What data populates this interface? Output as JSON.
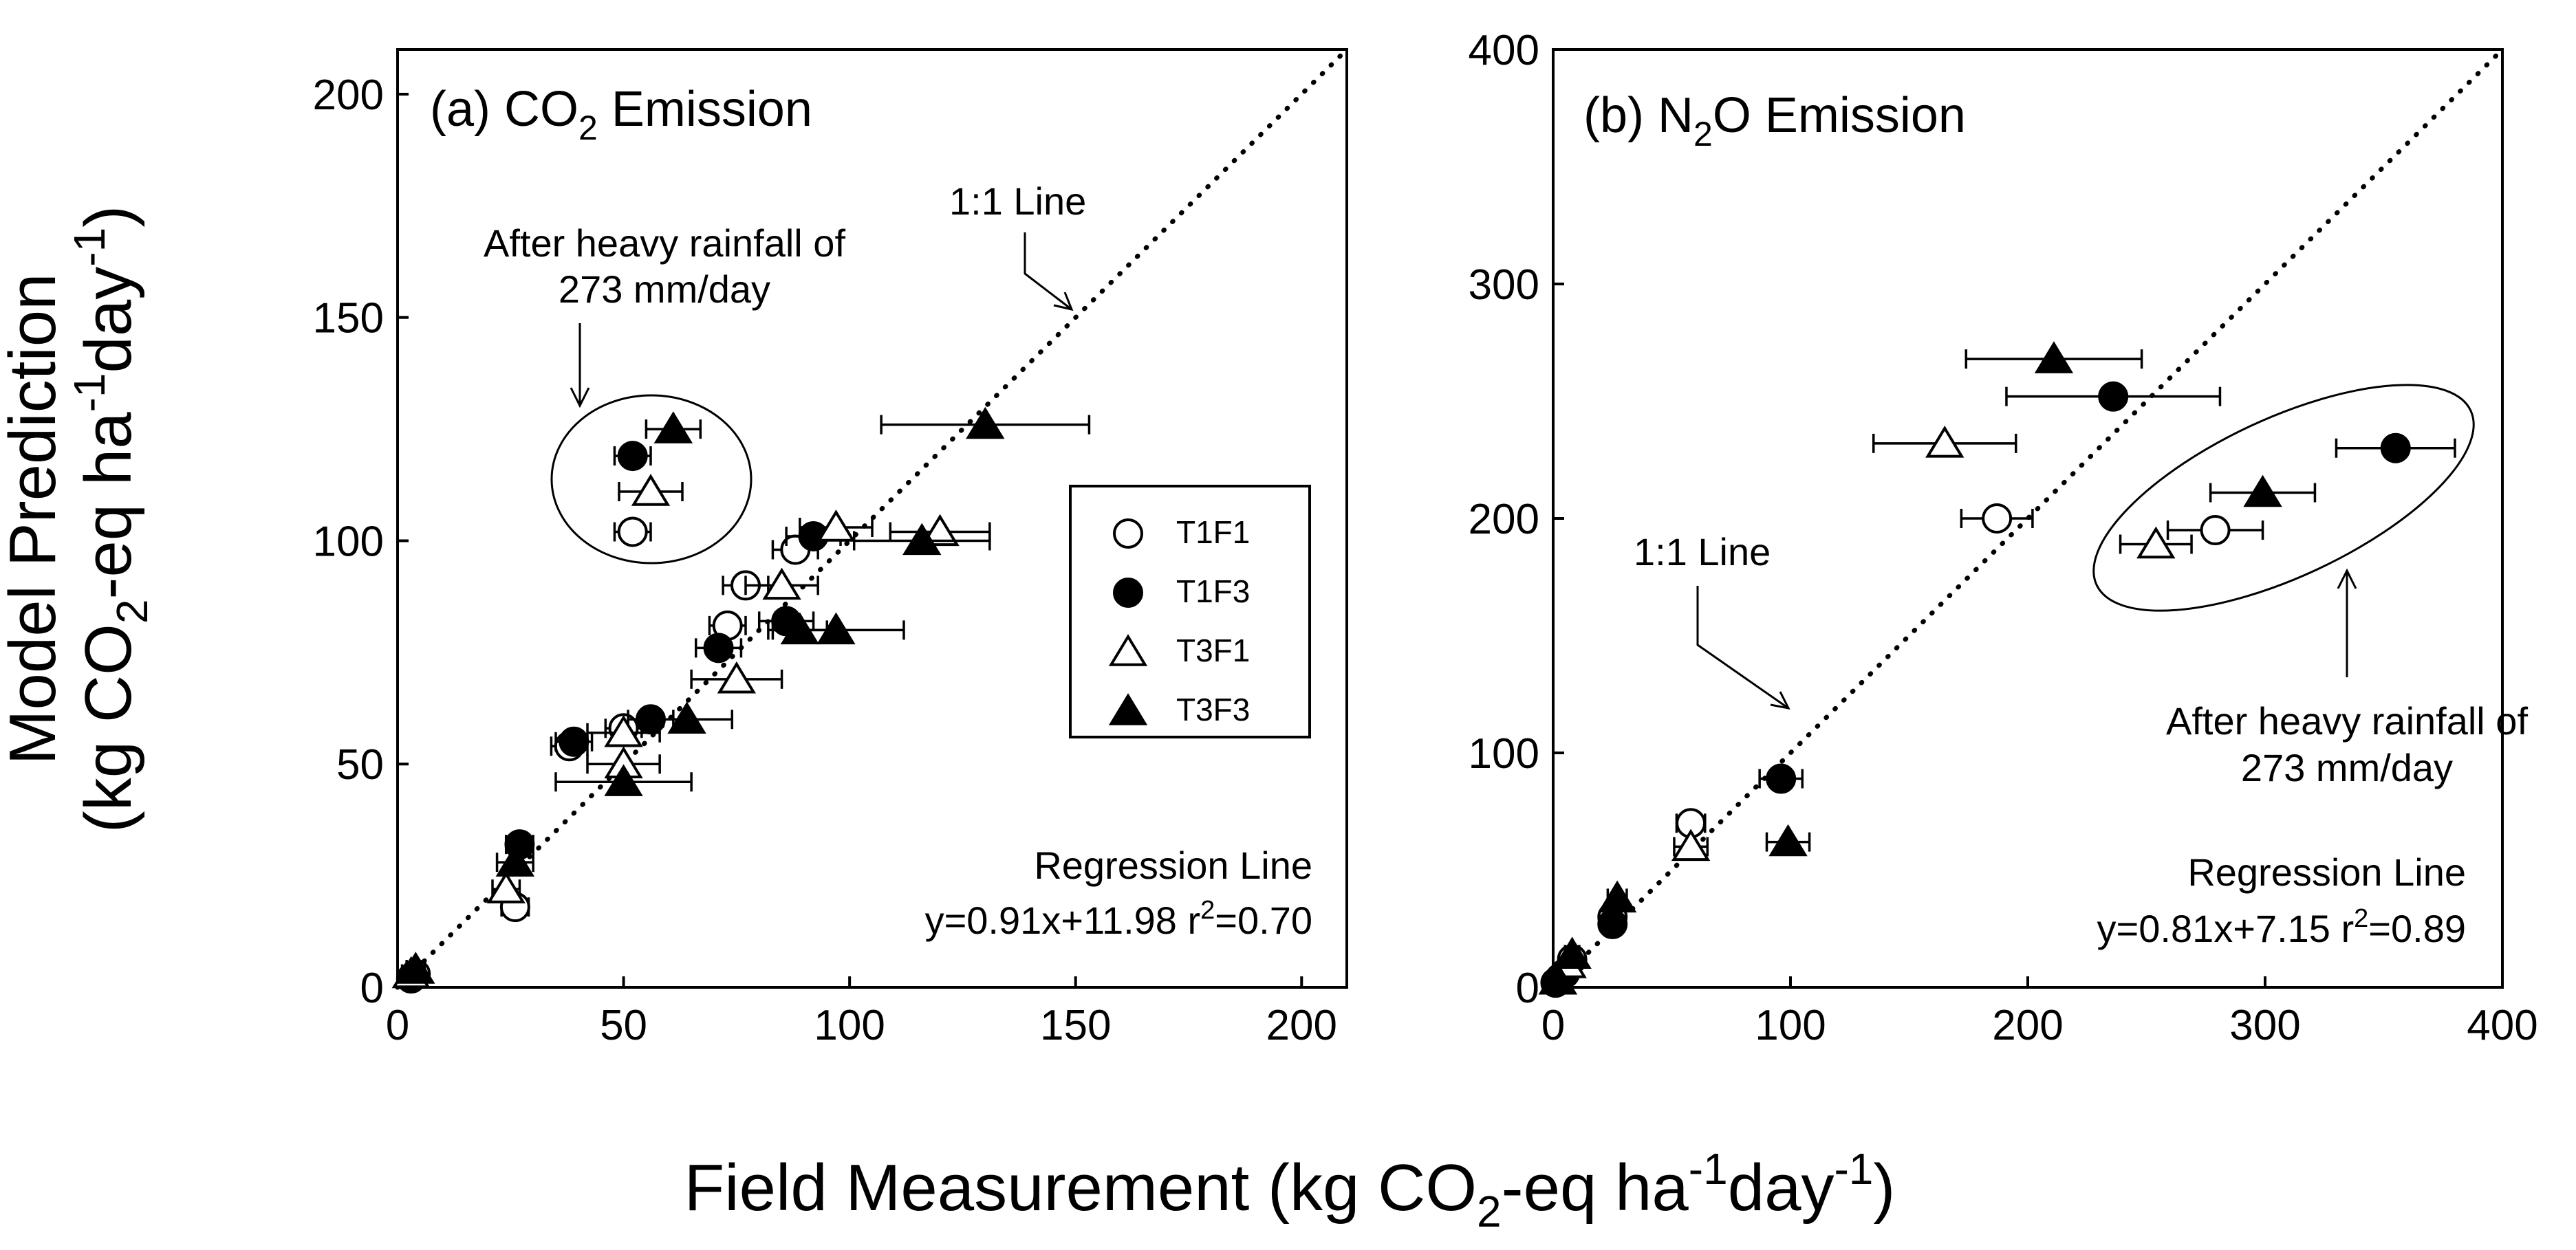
{
  "chart_data": [
    {
      "type": "scatter",
      "panel": "a",
      "title_parts": [
        "(a) CO",
        "2",
        " Emission"
      ],
      "xlim": [
        0,
        210
      ],
      "ylim": [
        0,
        210
      ],
      "xticks": [
        0,
        50,
        100,
        150,
        200
      ],
      "yticks": [
        0,
        50,
        100,
        150,
        200
      ],
      "tick_labels_x": [
        "0",
        "50",
        "100",
        "150",
        "200"
      ],
      "tick_labels_y": [
        "0",
        "50",
        "100",
        "150",
        "200"
      ],
      "one_to_one": {
        "label": "1:1 Line",
        "arrow_to": [
          150,
          150
        ]
      },
      "annotation": {
        "lines": [
          "After heavy rainfall of",
          "273 mm/day"
        ],
        "ellipse_center": [
          56,
          114
        ]
      },
      "legend": {
        "position": "right",
        "entries": [
          {
            "key": "T1F1",
            "label": "T1F1"
          },
          {
            "key": "T1F3",
            "label": "T1F3"
          },
          {
            "key": "T3F1",
            "label": "T3F1"
          },
          {
            "key": "T3F3",
            "label": "T3F3"
          }
        ]
      },
      "regression": {
        "label": "Regression Line",
        "eq_prefix": "y=0.91x+11.98 r",
        "eq_exp": "2",
        "eq_suffix": "=0.70"
      },
      "series": [
        {
          "name": "T1F1",
          "marker": "circle-open",
          "points": [
            [
              52,
              102,
              4
            ],
            [
              77,
              90,
              5
            ],
            [
              73,
              81,
              4
            ],
            [
              88,
              98,
              5
            ],
            [
              38,
              54,
              4
            ],
            [
              50,
              58,
              4
            ],
            [
              26,
              18,
              3
            ],
            [
              4,
              3,
              2
            ]
          ]
        },
        {
          "name": "T1F3",
          "marker": "circle-filled",
          "points": [
            [
              52,
              119,
              4
            ],
            [
              92,
              101,
              6
            ],
            [
              86,
              82,
              6
            ],
            [
              71,
              76,
              5
            ],
            [
              56,
              60,
              5
            ],
            [
              39,
              55,
              4
            ],
            [
              27,
              32,
              3
            ],
            [
              3,
              2,
              2
            ]
          ]
        },
        {
          "name": "T3F1",
          "marker": "triangle-open",
          "points": [
            [
              56,
              111,
              7
            ],
            [
              97,
              103,
              8
            ],
            [
              120,
              102,
              11
            ],
            [
              85,
              90,
              8
            ],
            [
              75,
              69,
              10
            ],
            [
              50,
              57,
              8
            ],
            [
              50,
              50,
              8
            ],
            [
              24,
              22,
              3
            ],
            [
              3,
              3,
              2
            ]
          ]
        },
        {
          "name": "T3F3",
          "marker": "triangle-filled",
          "points": [
            [
              61,
              125,
              6
            ],
            [
              130,
              126,
              23
            ],
            [
              116,
              100,
              15
            ],
            [
              97,
              80,
              15
            ],
            [
              89,
              80,
              6
            ],
            [
              64,
              60,
              10
            ],
            [
              50,
              46,
              15
            ],
            [
              26,
              28,
              4
            ],
            [
              4,
              4,
              2
            ]
          ]
        }
      ]
    },
    {
      "type": "scatter",
      "panel": "b",
      "title_parts": [
        "(b) N",
        "2",
        "O Emission"
      ],
      "xlim": [
        0,
        400
      ],
      "ylim": [
        0,
        400
      ],
      "xticks": [
        0,
        100,
        200,
        300,
        400
      ],
      "yticks": [
        0,
        100,
        200,
        300,
        400
      ],
      "tick_labels_x": [
        "0",
        "100",
        "200",
        "300",
        "400"
      ],
      "tick_labels_y": [
        "0",
        "100",
        "200",
        "300",
        "400"
      ],
      "one_to_one": {
        "label": "1:1 Line",
        "arrow_to": [
          97,
          117
        ]
      },
      "annotation": {
        "lines": [
          "After heavy rainfall of",
          "273 mm/day"
        ],
        "ellipse_center": [
          312,
          212
        ]
      },
      "regression": {
        "label": "Regression Line",
        "eq_prefix": "y=0.81x+7.15 r",
        "eq_exp": "2",
        "eq_suffix": "=0.89"
      },
      "series": [
        {
          "name": "T1F1",
          "marker": "circle-open",
          "points": [
            [
              187,
              200,
              15
            ],
            [
              279,
              195,
              20
            ],
            [
              58,
              70,
              6
            ],
            [
              25,
              30,
              4
            ],
            [
              8,
              12,
              3
            ],
            [
              3,
              4,
              2
            ]
          ]
        },
        {
          "name": "T1F3",
          "marker": "circle-filled",
          "points": [
            [
              355,
              230,
              25
            ],
            [
              236,
              252,
              45
            ],
            [
              96,
              89,
              9
            ],
            [
              25,
              27,
              4
            ],
            [
              5,
              6,
              2
            ],
            [
              1,
              2,
              1
            ]
          ]
        },
        {
          "name": "T3F1",
          "marker": "triangle-open",
          "points": [
            [
              165,
              232,
              30
            ],
            [
              254,
              189,
              15
            ],
            [
              58,
              60,
              7
            ],
            [
              6,
              10,
              2
            ],
            [
              2,
              3,
              1
            ]
          ]
        },
        {
          "name": "T3F3",
          "marker": "triangle-filled",
          "points": [
            [
              211,
              268,
              37
            ],
            [
              299,
              211,
              22
            ],
            [
              99,
              62,
              9
            ],
            [
              27,
              38,
              4
            ],
            [
              8,
              14,
              3
            ],
            [
              2,
              3,
              1
            ]
          ]
        }
      ]
    }
  ],
  "axes": {
    "ylabel_line1": "Model Prediction",
    "ylabel_line2_parts": [
      "(kg CO",
      "2",
      "-eq ha",
      "-1",
      "day",
      "-1",
      ")"
    ],
    "xlabel_parts": [
      "Field Measurement (kg CO",
      "2",
      "-eq ha",
      "-1",
      "day",
      "-1",
      ")"
    ]
  }
}
